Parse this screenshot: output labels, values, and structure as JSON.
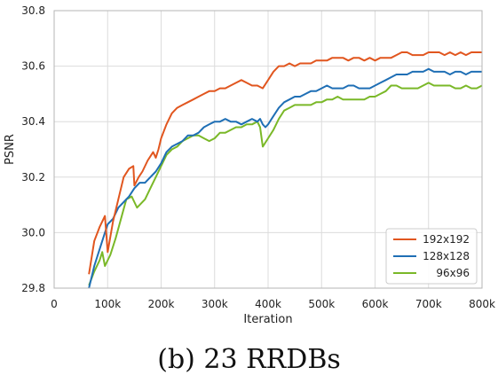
{
  "chart_data": {
    "type": "line",
    "title": "",
    "caption": "(b) 23 RRDBs",
    "xlabel": "Iteration",
    "ylabel": "PSNR",
    "xlim": [
      0,
      800000
    ],
    "ylim": [
      29.8,
      30.8
    ],
    "x_ticks": [
      0,
      100000,
      200000,
      300000,
      400000,
      500000,
      600000,
      700000,
      800000
    ],
    "x_tick_labels": [
      "0",
      "100k",
      "200k",
      "300k",
      "400k",
      "500k",
      "600k",
      "700k",
      "800k"
    ],
    "y_ticks": [
      29.8,
      30.0,
      30.2,
      30.4,
      30.6,
      30.8
    ],
    "y_tick_labels": [
      "29.8",
      "30.0",
      "30.2",
      "30.4",
      "30.6",
      "30.8"
    ],
    "grid": true,
    "legend_position": "bottom-right",
    "series": [
      {
        "name": "192x192",
        "color": "#e1561f",
        "x": [
          65000,
          75000,
          85000,
          95000,
          100000,
          110000,
          120000,
          130000,
          140000,
          148000,
          150000,
          158000,
          165000,
          175000,
          185000,
          190000,
          195000,
          200000,
          210000,
          220000,
          230000,
          240000,
          250000,
          260000,
          270000,
          280000,
          290000,
          300000,
          310000,
          320000,
          330000,
          340000,
          350000,
          360000,
          370000,
          380000,
          390000,
          400000,
          410000,
          420000,
          430000,
          440000,
          450000,
          460000,
          470000,
          480000,
          490000,
          500000,
          510000,
          520000,
          530000,
          540000,
          550000,
          560000,
          570000,
          580000,
          590000,
          600000,
          610000,
          620000,
          630000,
          640000,
          650000,
          660000,
          670000,
          680000,
          690000,
          700000,
          710000,
          720000,
          730000,
          740000,
          750000,
          760000,
          770000,
          780000,
          790000,
          800000
        ],
        "values": [
          29.85,
          29.97,
          30.02,
          30.06,
          29.93,
          30.04,
          30.12,
          30.2,
          30.23,
          30.24,
          30.17,
          30.2,
          30.22,
          30.26,
          30.29,
          30.27,
          30.3,
          30.34,
          30.39,
          30.43,
          30.45,
          30.46,
          30.47,
          30.48,
          30.49,
          30.5,
          30.51,
          30.51,
          30.52,
          30.52,
          30.53,
          30.54,
          30.55,
          30.54,
          30.53,
          30.53,
          30.52,
          30.55,
          30.58,
          30.6,
          30.6,
          30.61,
          30.6,
          30.61,
          30.61,
          30.61,
          30.62,
          30.62,
          30.62,
          30.63,
          30.63,
          30.63,
          30.62,
          30.63,
          30.63,
          30.62,
          30.63,
          30.62,
          30.63,
          30.63,
          30.63,
          30.64,
          30.65,
          30.65,
          30.64,
          30.64,
          30.64,
          30.65,
          30.65,
          30.65,
          30.64,
          30.65,
          30.64,
          30.65,
          30.64,
          30.65,
          30.65,
          30.65
        ]
      },
      {
        "name": "128x128",
        "color": "#1f6fb5",
        "x": [
          65000,
          75000,
          85000,
          95000,
          100000,
          110000,
          120000,
          130000,
          140000,
          150000,
          160000,
          170000,
          180000,
          190000,
          200000,
          210000,
          220000,
          230000,
          240000,
          250000,
          260000,
          270000,
          280000,
          290000,
          300000,
          310000,
          320000,
          330000,
          340000,
          350000,
          360000,
          370000,
          380000,
          385000,
          390000,
          395000,
          400000,
          410000,
          420000,
          430000,
          440000,
          450000,
          460000,
          470000,
          480000,
          490000,
          500000,
          510000,
          520000,
          530000,
          540000,
          550000,
          560000,
          570000,
          580000,
          590000,
          600000,
          610000,
          620000,
          630000,
          640000,
          650000,
          660000,
          670000,
          680000,
          690000,
          700000,
          710000,
          720000,
          730000,
          740000,
          750000,
          760000,
          770000,
          780000,
          790000,
          800000
        ],
        "values": [
          29.8,
          29.88,
          29.94,
          30.0,
          30.03,
          30.05,
          30.09,
          30.11,
          30.13,
          30.16,
          30.18,
          30.18,
          30.2,
          30.22,
          30.25,
          30.29,
          30.31,
          30.32,
          30.33,
          30.35,
          30.35,
          30.36,
          30.38,
          30.39,
          30.4,
          30.4,
          30.41,
          30.4,
          30.4,
          30.39,
          30.4,
          30.41,
          30.4,
          30.41,
          30.39,
          30.38,
          30.39,
          30.42,
          30.45,
          30.47,
          30.48,
          30.49,
          30.49,
          30.5,
          30.51,
          30.51,
          30.52,
          30.53,
          30.52,
          30.52,
          30.52,
          30.53,
          30.53,
          30.52,
          30.52,
          30.52,
          30.53,
          30.54,
          30.55,
          30.56,
          30.57,
          30.57,
          30.57,
          30.58,
          30.58,
          30.58,
          30.59,
          30.58,
          30.58,
          30.58,
          30.57,
          30.58,
          30.58,
          30.57,
          30.58,
          30.58,
          30.58
        ]
      },
      {
        "name": "96x96",
        "color": "#7ab828",
        "x": [
          65000,
          75000,
          85000,
          90000,
          95000,
          105000,
          115000,
          125000,
          135000,
          145000,
          150000,
          155000,
          160000,
          170000,
          180000,
          190000,
          200000,
          210000,
          220000,
          230000,
          240000,
          250000,
          260000,
          270000,
          280000,
          290000,
          300000,
          310000,
          320000,
          330000,
          340000,
          350000,
          360000,
          370000,
          380000,
          385000,
          390000,
          400000,
          410000,
          420000,
          430000,
          440000,
          450000,
          460000,
          470000,
          480000,
          490000,
          500000,
          510000,
          520000,
          530000,
          540000,
          550000,
          560000,
          570000,
          580000,
          590000,
          600000,
          610000,
          620000,
          630000,
          640000,
          650000,
          660000,
          670000,
          680000,
          690000,
          700000,
          710000,
          720000,
          730000,
          740000,
          750000,
          760000,
          770000,
          780000,
          790000,
          800000
        ],
        "values": [
          29.81,
          29.86,
          29.9,
          29.93,
          29.88,
          29.92,
          29.98,
          30.05,
          30.12,
          30.13,
          30.11,
          30.09,
          30.1,
          30.12,
          30.16,
          30.2,
          30.24,
          30.28,
          30.3,
          30.31,
          30.33,
          30.34,
          30.35,
          30.35,
          30.34,
          30.33,
          30.34,
          30.36,
          30.36,
          30.37,
          30.38,
          30.38,
          30.39,
          30.39,
          30.4,
          30.38,
          30.31,
          30.34,
          30.37,
          30.41,
          30.44,
          30.45,
          30.46,
          30.46,
          30.46,
          30.46,
          30.47,
          30.47,
          30.48,
          30.48,
          30.49,
          30.48,
          30.48,
          30.48,
          30.48,
          30.48,
          30.49,
          30.49,
          30.5,
          30.51,
          30.53,
          30.53,
          30.52,
          30.52,
          30.52,
          30.52,
          30.53,
          30.54,
          30.53,
          30.53,
          30.53,
          30.53,
          30.52,
          30.52,
          30.53,
          30.52,
          30.52,
          30.53
        ]
      }
    ]
  }
}
